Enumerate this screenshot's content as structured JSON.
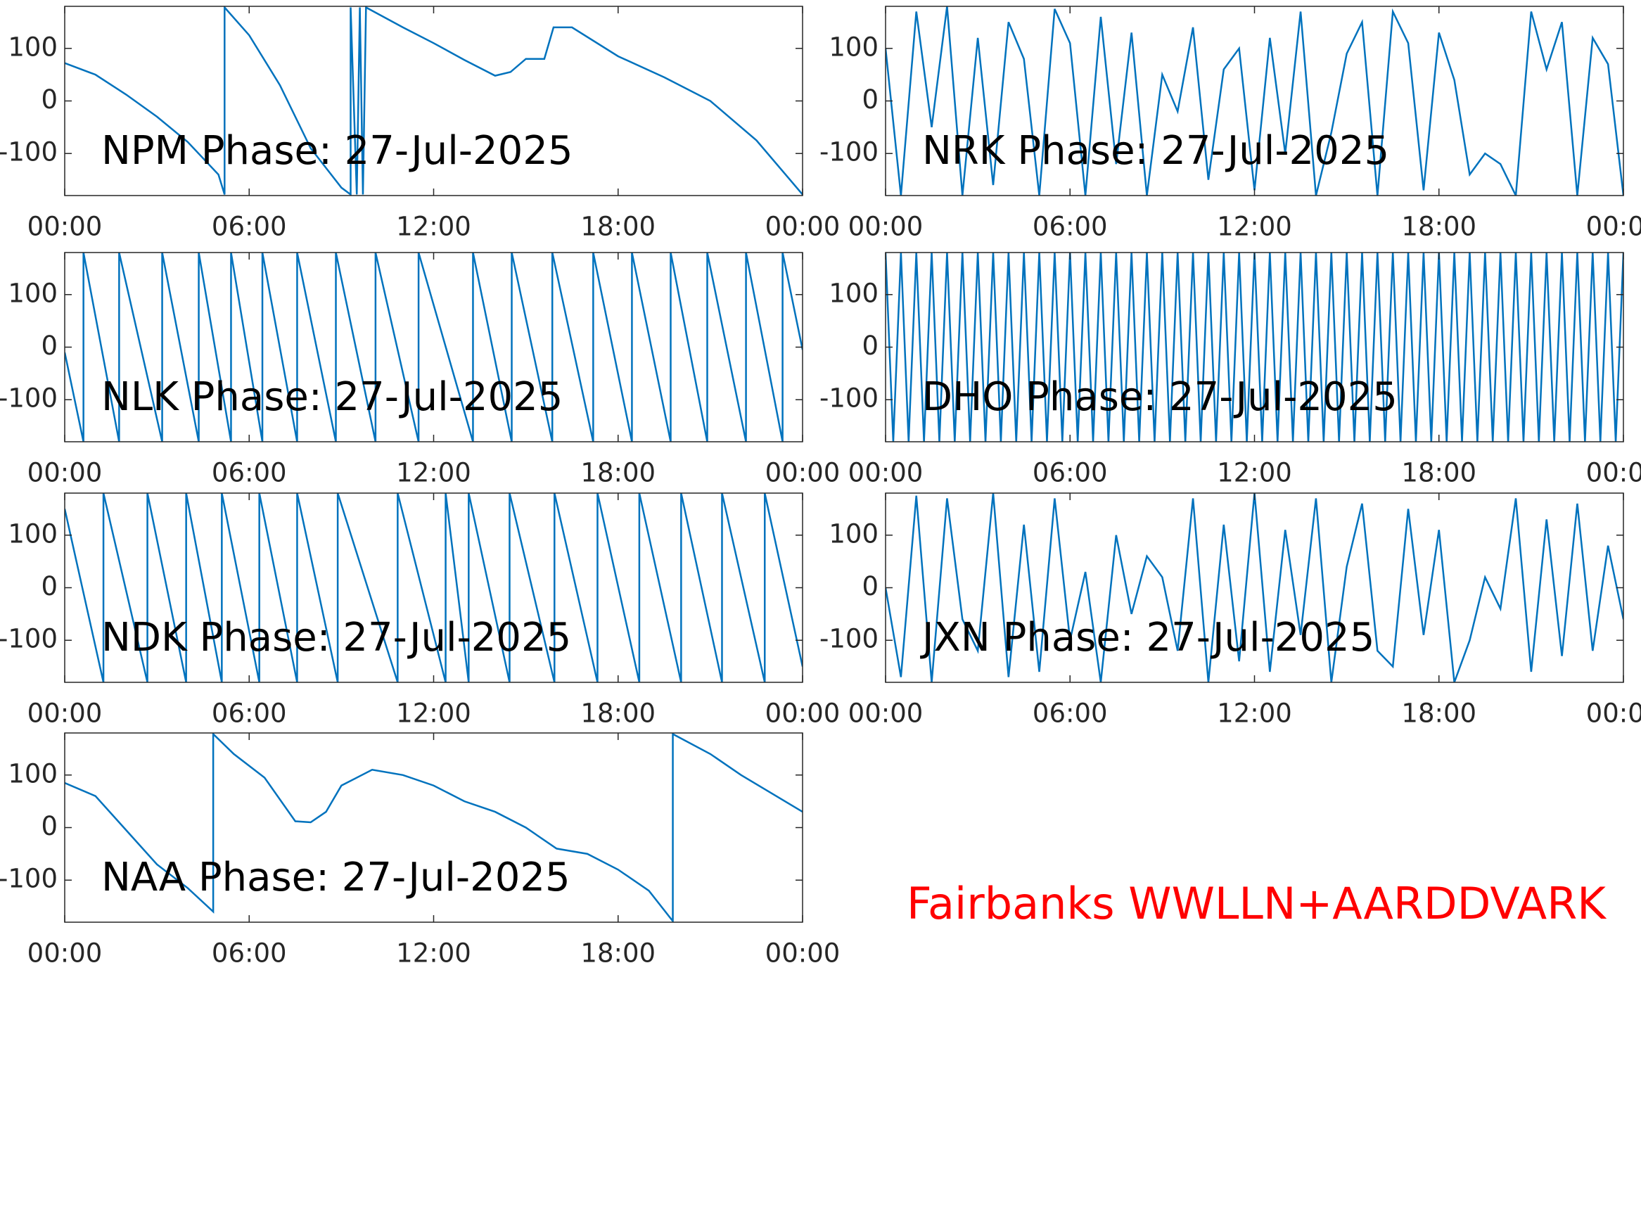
{
  "chart_data": [
    {
      "type": "line",
      "title": "NPM Phase: 27-Jul-2025",
      "x": [
        0,
        1,
        2,
        3,
        4,
        5,
        5.2,
        5.2,
        6,
        7,
        8,
        9,
        9.3,
        9.3,
        9.5,
        9.6,
        9.7,
        9.8,
        11,
        12,
        13,
        14,
        14.5,
        15,
        15.6,
        15.9,
        16.5,
        18,
        19.5,
        21,
        22.5,
        24
      ],
      "series": [
        {
          "color": "#0072bd",
          "values": [
            72,
            50,
            12,
            -30,
            -78,
            -140,
            -178,
            178,
            125,
            30,
            -90,
            -165,
            -178,
            178,
            -178,
            178,
            -178,
            178,
            140,
            110,
            78,
            48,
            55,
            80,
            80,
            140,
            140,
            85,
            45,
            0,
            -75,
            -178
          ]
        }
      ],
      "xlim": [
        0,
        24
      ],
      "xticks": [
        {
          "value": 0,
          "label": "00:00"
        },
        {
          "value": 6,
          "label": "06:00"
        },
        {
          "value": 12,
          "label": "12:00"
        },
        {
          "value": 18,
          "label": "18:00"
        },
        {
          "value": 24,
          "label": "00:00"
        }
      ],
      "ylim": [
        -180,
        180
      ],
      "yticks": [
        -100,
        0,
        100
      ]
    },
    {
      "type": "line",
      "title": "NRK Phase: 27-Jul-2025",
      "x": [
        0,
        0.5,
        1,
        1.5,
        2,
        2.5,
        3,
        3.5,
        4,
        4.5,
        5,
        5.5,
        6,
        6.5,
        7,
        7.5,
        8,
        8.5,
        9,
        9.5,
        10,
        10.5,
        11,
        11.5,
        12,
        12.5,
        13,
        13.5,
        14,
        14.5,
        15,
        15.5,
        16,
        16.5,
        17,
        17.5,
        18,
        18.5,
        19,
        19.5,
        20,
        20.5,
        21,
        21.5,
        22,
        22.5,
        23,
        23.5,
        24
      ],
      "series": [
        {
          "color": "#0072bd",
          "values": [
            100,
            -180,
            170,
            -50,
            180,
            -180,
            120,
            -160,
            150,
            80,
            -180,
            175,
            110,
            -180,
            160,
            -120,
            130,
            -180,
            50,
            -20,
            140,
            -150,
            60,
            100,
            -170,
            120,
            -100,
            170,
            -180,
            -60,
            90,
            150,
            -180,
            170,
            110,
            -170,
            130,
            40,
            -140,
            -100,
            -120,
            -180,
            170,
            60,
            150,
            -180,
            120,
            70,
            -180
          ]
        }
      ],
      "xlim": [
        0,
        24
      ],
      "xticks": [
        {
          "value": 0,
          "label": "00:00"
        },
        {
          "value": 6,
          "label": "06:00"
        },
        {
          "value": 12,
          "label": "12:00"
        },
        {
          "value": 18,
          "label": "18:00"
        },
        {
          "value": 24,
          "label": "00:00"
        }
      ],
      "ylim": [
        -180,
        180
      ],
      "yticks": [
        -100,
        0,
        100
      ]
    },
    {
      "type": "line",
      "title": "NLK Phase: 27-Jul-2025",
      "x": [
        0,
        0.61,
        0.61,
        1.77,
        1.77,
        3.17,
        3.17,
        4.36,
        4.36,
        5.41,
        5.41,
        6.43,
        6.43,
        7.56,
        7.56,
        8.82,
        8.82,
        10.11,
        10.11,
        11.51,
        11.51,
        13.28,
        13.28,
        14.54,
        14.54,
        15.86,
        15.86,
        17.19,
        17.19,
        18.45,
        18.45,
        19.71,
        19.71,
        20.9,
        20.9,
        22.16,
        22.16,
        23.35,
        23.35,
        24
      ],
      "series": [
        {
          "color": "#0072bd",
          "values": [
            -10,
            -180,
            180,
            -180,
            180,
            -180,
            180,
            -180,
            180,
            -180,
            180,
            -180,
            180,
            -180,
            180,
            -180,
            180,
            -180,
            180,
            -180,
            180,
            -180,
            180,
            -180,
            180,
            -180,
            180,
            -180,
            180,
            -180,
            180,
            -180,
            180,
            -180,
            180,
            -180,
            180,
            -180,
            180,
            -5
          ]
        }
      ],
      "xlim": [
        0,
        24
      ],
      "xticks": [
        {
          "value": 0,
          "label": "00:00"
        },
        {
          "value": 6,
          "label": "06:00"
        },
        {
          "value": 12,
          "label": "12:00"
        },
        {
          "value": 18,
          "label": "18:00"
        },
        {
          "value": 24,
          "label": "00:00"
        }
      ],
      "ylim": [
        -180,
        180
      ],
      "yticks": [
        -100,
        0,
        100
      ]
    },
    {
      "type": "line",
      "title": "DHO Phase: 27-Jul-2025",
      "x": [
        0,
        0.25,
        0.5,
        0.75,
        1,
        1.25,
        1.5,
        1.75,
        2,
        2.25,
        2.5,
        2.75,
        3,
        3.25,
        3.5,
        3.75,
        4,
        4.25,
        4.5,
        4.75,
        5,
        5.25,
        5.5,
        5.75,
        6,
        6.25,
        6.5,
        6.75,
        7,
        7.25,
        7.5,
        7.75,
        8,
        8.25,
        8.5,
        8.75,
        9,
        9.25,
        9.5,
        9.75,
        10,
        10.25,
        10.5,
        10.75,
        11,
        11.25,
        11.5,
        11.75,
        12,
        12.25,
        12.5,
        12.75,
        13,
        13.25,
        13.5,
        13.75,
        14,
        14.25,
        14.5,
        14.75,
        15,
        15.25,
        15.5,
        15.75,
        16,
        16.25,
        16.5,
        16.75,
        17,
        17.25,
        17.5,
        17.75,
        18,
        18.25,
        18.5,
        18.75,
        19,
        19.25,
        19.5,
        19.75,
        20,
        20.25,
        20.5,
        20.75,
        21,
        21.25,
        21.5,
        21.75,
        22,
        22.25,
        22.5,
        22.75,
        23,
        23.25,
        23.5,
        23.75,
        24
      ],
      "series": [
        {
          "color": "#0072bd",
          "values": [
            180,
            -180,
            180,
            -180,
            180,
            -180,
            180,
            -180,
            180,
            -180,
            180,
            -180,
            180,
            -180,
            180,
            -180,
            180,
            -180,
            180,
            -180,
            180,
            -180,
            180,
            -180,
            180,
            -180,
            180,
            -180,
            180,
            -180,
            180,
            -180,
            180,
            -180,
            180,
            -180,
            180,
            -180,
            180,
            -180,
            180,
            -180,
            180,
            -180,
            180,
            -180,
            180,
            -180,
            180,
            -180,
            180,
            -180,
            180,
            -180,
            180,
            -180,
            180,
            -180,
            180,
            -180,
            180,
            -180,
            180,
            -180,
            180,
            -180,
            180,
            -180,
            180,
            -180,
            180,
            -180,
            180,
            -180,
            180,
            -180,
            180,
            -180,
            180,
            -180,
            180,
            -180,
            180,
            -180,
            180,
            -180,
            180,
            -180,
            180,
            -180,
            180,
            -180,
            180,
            -180,
            180,
            -180,
            180
          ]
        }
      ],
      "xlim": [
        0,
        24
      ],
      "xticks": [
        {
          "value": 0,
          "label": "00:00"
        },
        {
          "value": 6,
          "label": "06:00"
        },
        {
          "value": 12,
          "label": "12:00"
        },
        {
          "value": 18,
          "label": "18:00"
        },
        {
          "value": 24,
          "label": "00:00"
        }
      ],
      "ylim": [
        -180,
        180
      ],
      "yticks": [
        -100,
        0,
        100
      ]
    },
    {
      "type": "line",
      "title": "NDK Phase: 27-Jul-2025",
      "x": [
        0,
        1.26,
        1.26,
        2.69,
        2.69,
        3.95,
        3.95,
        5.11,
        5.11,
        6.33,
        6.33,
        7.56,
        7.56,
        8.88,
        8.88,
        10.83,
        10.83,
        12.39,
        12.39,
        13.14,
        13.14,
        14.47,
        14.47,
        15.93,
        15.93,
        17.33,
        17.33,
        18.69,
        18.69,
        20.05,
        20.05,
        21.38,
        21.38,
        22.77,
        22.77,
        24
      ],
      "series": [
        {
          "color": "#0072bd",
          "values": [
            150,
            -180,
            180,
            -180,
            180,
            -180,
            180,
            -180,
            180,
            -180,
            180,
            -180,
            180,
            -180,
            180,
            -180,
            180,
            -180,
            180,
            -180,
            180,
            -180,
            180,
            -180,
            180,
            -180,
            180,
            -180,
            180,
            -180,
            180,
            -180,
            180,
            -180,
            180,
            -150
          ]
        }
      ],
      "xlim": [
        0,
        24
      ],
      "xticks": [
        {
          "value": 0,
          "label": "00:00"
        },
        {
          "value": 6,
          "label": "06:00"
        },
        {
          "value": 12,
          "label": "12:00"
        },
        {
          "value": 18,
          "label": "18:00"
        },
        {
          "value": 24,
          "label": "00:00"
        }
      ],
      "ylim": [
        -180,
        180
      ],
      "yticks": [
        -100,
        0,
        100
      ]
    },
    {
      "type": "line",
      "title": "JXN Phase: 27-Jul-2025",
      "x": [
        0,
        0.5,
        1,
        1.5,
        2,
        2.5,
        3,
        3.5,
        4,
        4.5,
        5,
        5.5,
        6,
        6.5,
        7,
        7.5,
        8,
        8.5,
        9,
        9.5,
        10,
        10.5,
        11,
        11.5,
        12,
        12.5,
        13,
        13.5,
        14,
        14.5,
        15,
        15.5,
        16,
        16.5,
        17,
        17.5,
        18,
        18.5,
        19,
        19.5,
        20,
        20.5,
        21,
        21.5,
        22,
        22.5,
        23,
        23.5,
        24
      ],
      "series": [
        {
          "color": "#0072bd",
          "values": [
            0,
            -170,
            175,
            -180,
            170,
            -60,
            -120,
            180,
            -170,
            120,
            -160,
            170,
            -100,
            30,
            -180,
            100,
            -50,
            60,
            20,
            -120,
            170,
            -180,
            120,
            -140,
            180,
            -160,
            110,
            -90,
            170,
            -180,
            40,
            160,
            -120,
            -150,
            150,
            -90,
            110,
            -180,
            -100,
            20,
            -40,
            170,
            -160,
            130,
            -130,
            160,
            -120,
            80,
            -60
          ]
        }
      ],
      "xlim": [
        0,
        24
      ],
      "xticks": [
        {
          "value": 0,
          "label": "00:00"
        },
        {
          "value": 6,
          "label": "06:00"
        },
        {
          "value": 12,
          "label": "12:00"
        },
        {
          "value": 18,
          "label": "18:00"
        },
        {
          "value": 24,
          "label": "00:00"
        }
      ],
      "ylim": [
        -180,
        180
      ],
      "yticks": [
        -100,
        0,
        100
      ]
    },
    {
      "type": "line",
      "title": "NAA Phase: 27-Jul-2025",
      "x": [
        0,
        1,
        2,
        3,
        4,
        4.83,
        4.83,
        5.5,
        6.5,
        7.5,
        8,
        8.5,
        9,
        10,
        11,
        12,
        13,
        14,
        15,
        16,
        17,
        18,
        19,
        19.78,
        19.78,
        21,
        22,
        23,
        24
      ],
      "series": [
        {
          "color": "#0072bd",
          "values": [
            85,
            60,
            -5,
            -70,
            -115,
            -160,
            178,
            140,
            95,
            12,
            10,
            30,
            80,
            110,
            100,
            80,
            50,
            30,
            0,
            -40,
            -50,
            -80,
            -120,
            -178,
            178,
            140,
            100,
            65,
            30
          ]
        }
      ],
      "xlim": [
        0,
        24
      ],
      "xticks": [
        {
          "value": 0,
          "label": "00:00"
        },
        {
          "value": 6,
          "label": "06:00"
        },
        {
          "value": 12,
          "label": "12:00"
        },
        {
          "value": 18,
          "label": "18:00"
        },
        {
          "value": 24,
          "label": "00:00"
        }
      ],
      "ylim": [
        -180,
        180
      ],
      "yticks": [
        -100,
        0,
        100
      ]
    }
  ],
  "annotation": "Fairbanks WWLLN+AARDDVARK"
}
